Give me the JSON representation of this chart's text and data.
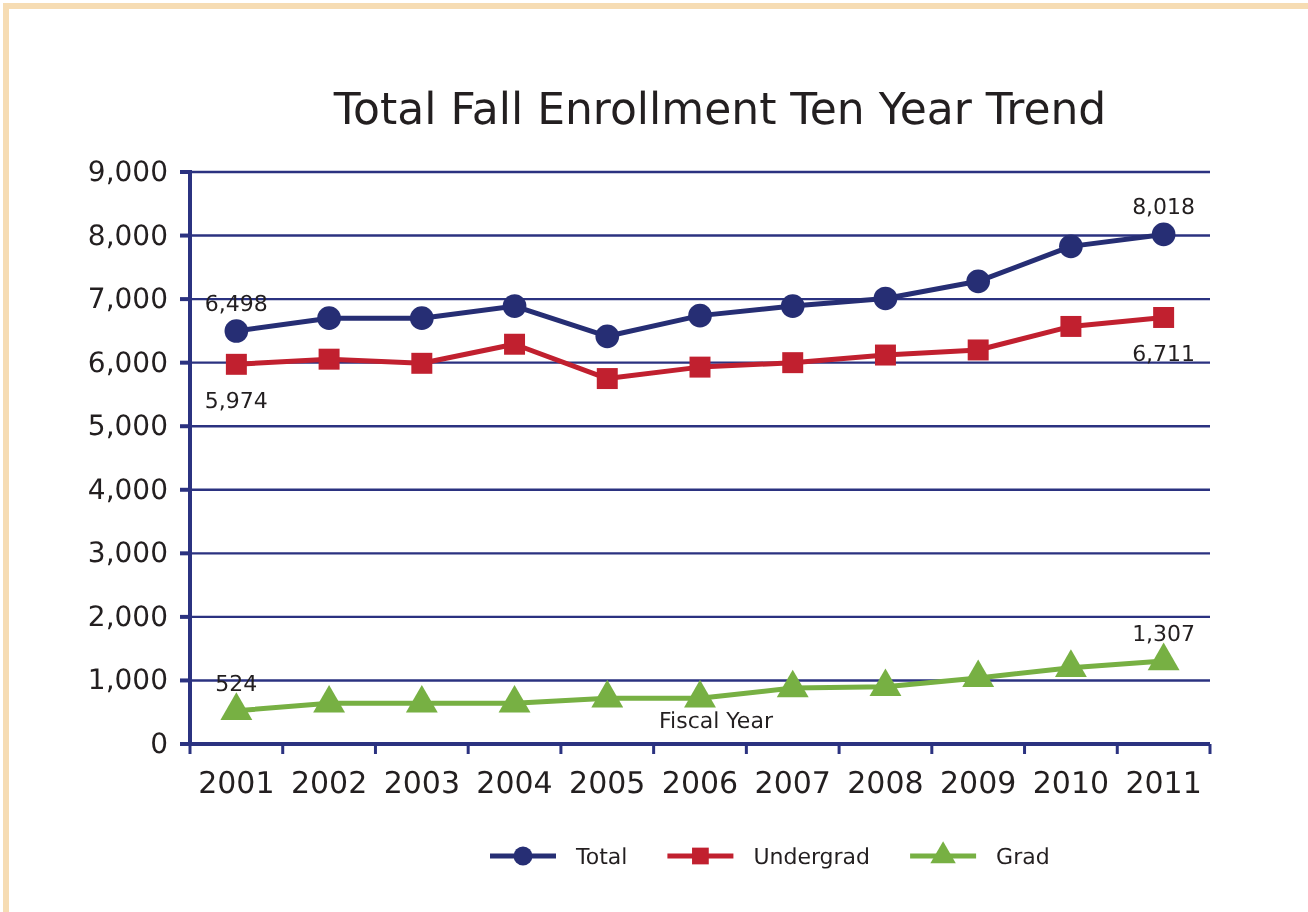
{
  "chart_data": {
    "type": "line",
    "title": "Total Fall Enrollment Ten Year Trend",
    "xlabel": "Fiscal Year",
    "categories": [
      "2001",
      "2002",
      "2003",
      "2004",
      "2005",
      "2006",
      "2007",
      "2008",
      "2009",
      "2010",
      "2011"
    ],
    "series": [
      {
        "name": "Total",
        "color": "#262e74",
        "marker": "circle",
        "values": [
          6498,
          6700,
          6700,
          6890,
          6415,
          6740,
          6890,
          7010,
          7280,
          7830,
          8018
        ],
        "value_labels": [
          "6,498",
          null,
          null,
          null,
          null,
          null,
          null,
          null,
          null,
          null,
          "8,018"
        ]
      },
      {
        "name": "Undergrad",
        "color": "#c1202f",
        "marker": "square",
        "values": [
          5974,
          6055,
          5990,
          6290,
          5750,
          5930,
          6000,
          6120,
          6200,
          6570,
          6711
        ],
        "value_labels": [
          "5,974",
          null,
          null,
          null,
          null,
          null,
          null,
          null,
          null,
          null,
          "6,711"
        ]
      },
      {
        "name": "Grad",
        "color": "#77b043",
        "marker": "triangle",
        "values": [
          524,
          640,
          640,
          640,
          720,
          720,
          880,
          900,
          1040,
          1200,
          1307
        ],
        "value_labels": [
          "524",
          null,
          null,
          null,
          null,
          null,
          null,
          null,
          null,
          null,
          "1,307"
        ]
      }
    ],
    "ylim": [
      0,
      9000
    ],
    "yticks": [
      {
        "value": 0,
        "label": "0"
      },
      {
        "value": 1000,
        "label": "1,000"
      },
      {
        "value": 2000,
        "label": "2,000"
      },
      {
        "value": 3000,
        "label": "3,000"
      },
      {
        "value": 4000,
        "label": "4,000"
      },
      {
        "value": 5000,
        "label": "5,000"
      },
      {
        "value": 6000,
        "label": "6,000"
      },
      {
        "value": 7000,
        "label": "7,000"
      },
      {
        "value": 8000,
        "label": "8,000"
      },
      {
        "value": 9000,
        "label": "9,000"
      }
    ],
    "grid": "y",
    "legend": "bottom"
  }
}
